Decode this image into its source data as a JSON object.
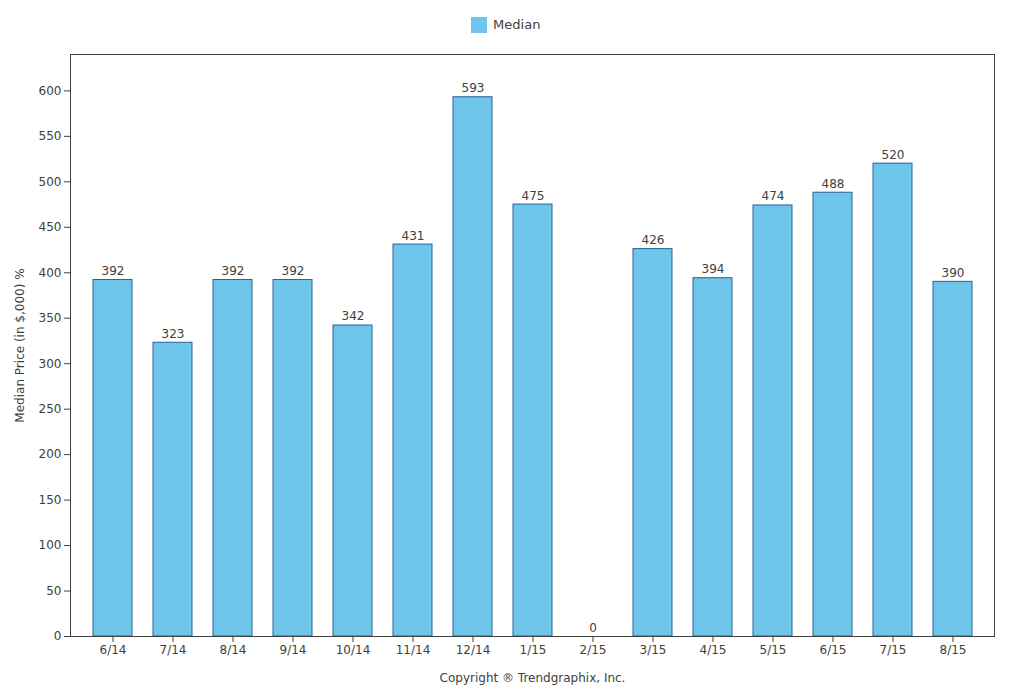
{
  "chart_data": {
    "type": "bar",
    "categories": [
      "6/14",
      "7/14",
      "8/14",
      "9/14",
      "10/14",
      "11/14",
      "12/14",
      "1/15",
      "2/15",
      "3/15",
      "4/15",
      "5/15",
      "6/15",
      "7/15",
      "8/15"
    ],
    "series": [
      {
        "name": "Median",
        "color": "#6EC6EA",
        "values": [
          392,
          323,
          392,
          392,
          342,
          431,
          593,
          475,
          0,
          426,
          394,
          474,
          488,
          520,
          390
        ]
      }
    ],
    "xlabel": "Copyright ® Trendgraphix, Inc.",
    "ylabel": "Median Price (in $,000) %",
    "ylim": [
      0,
      640
    ],
    "yticks": [
      0,
      50,
      100,
      150,
      200,
      250,
      300,
      350,
      400,
      450,
      500,
      550,
      600
    ],
    "grid": false,
    "legend": "top",
    "data_labels": true
  }
}
